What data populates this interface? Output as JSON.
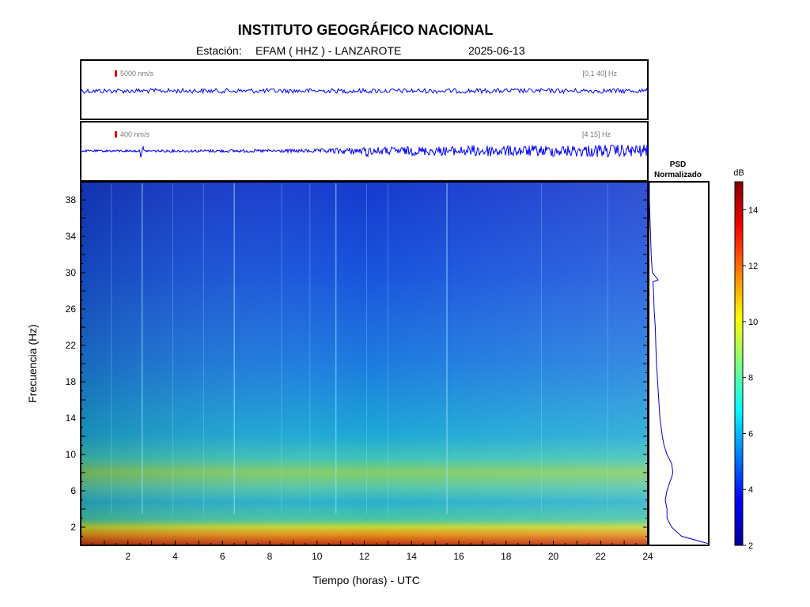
{
  "header": {
    "title": "INSTITUTO GEOGRÁFICO NACIONAL",
    "station_label": "Estación:",
    "station": "EFAM ( HHZ ) - LANZAROTE",
    "date": "2025-06-13"
  },
  "chart_data": [
    {
      "type": "line",
      "name": "seismogram-broadband",
      "scale_label": "5000 nm/s",
      "band_label": "[0.1 40] Hz",
      "color": "#0000ff",
      "scale_marker_color": "#e00000",
      "xlim": [
        0,
        24
      ]
    },
    {
      "type": "line",
      "name": "seismogram-filtered",
      "scale_label": "400 nm/s",
      "band_label": "[4 15] Hz",
      "color": "#0000ff",
      "scale_marker_color": "#e00000",
      "xlim": [
        0,
        24
      ],
      "amplitude_envelope": {
        "x": [
          0,
          2,
          4,
          6,
          8,
          10,
          11,
          12,
          14,
          16,
          17,
          18,
          20,
          22,
          24
        ],
        "y": [
          0.15,
          0.18,
          0.2,
          0.22,
          0.25,
          0.3,
          0.5,
          0.6,
          0.7,
          0.75,
          1.0,
          0.85,
          0.9,
          1.0,
          1.0
        ]
      },
      "events_hours": [
        2.6,
        12.1
      ]
    },
    {
      "type": "heatmap",
      "name": "spectrogram",
      "xlabel": "Tiempo (horas) - UTC",
      "ylabel": "Frecuencia  (Hz)",
      "xlim": [
        0,
        24
      ],
      "ylim": [
        0,
        40
      ],
      "xticks": [
        2,
        4,
        6,
        8,
        10,
        12,
        14,
        16,
        18,
        20,
        22,
        24
      ],
      "yticks": [
        2,
        6,
        10,
        14,
        18,
        22,
        26,
        30,
        34,
        38
      ],
      "vertical_lines_hours": [
        1.3,
        2.6,
        3.9,
        5.2,
        6.5,
        8.5,
        9.7,
        10.8,
        12.1,
        13.0,
        15.5,
        19.5,
        22.3
      ],
      "colorbar": {
        "label": "dB",
        "range": [
          2,
          15
        ],
        "ticks": [
          2,
          4,
          6,
          8,
          10,
          12,
          14
        ]
      }
    },
    {
      "type": "line",
      "name": "psd-normalized",
      "title_line1": "PSD",
      "title_line2": "Normalizado",
      "color": "#0000cc",
      "freq_hz": [
        0.2,
        1,
        2,
        3,
        4,
        5,
        6,
        7,
        7.5,
        8,
        9,
        10,
        11,
        12,
        14,
        16,
        18,
        20,
        22,
        24,
        26,
        28,
        29,
        29.2,
        30,
        32,
        34,
        36,
        38,
        40
      ],
      "value": [
        1.0,
        0.55,
        0.38,
        0.3,
        0.3,
        0.27,
        0.3,
        0.35,
        0.38,
        0.4,
        0.38,
        0.3,
        0.25,
        0.22,
        0.18,
        0.16,
        0.14,
        0.12,
        0.11,
        0.1,
        0.08,
        0.07,
        0.06,
        0.15,
        0.05,
        0.03,
        0.02,
        0.01,
        0.0,
        0.0
      ]
    }
  ]
}
